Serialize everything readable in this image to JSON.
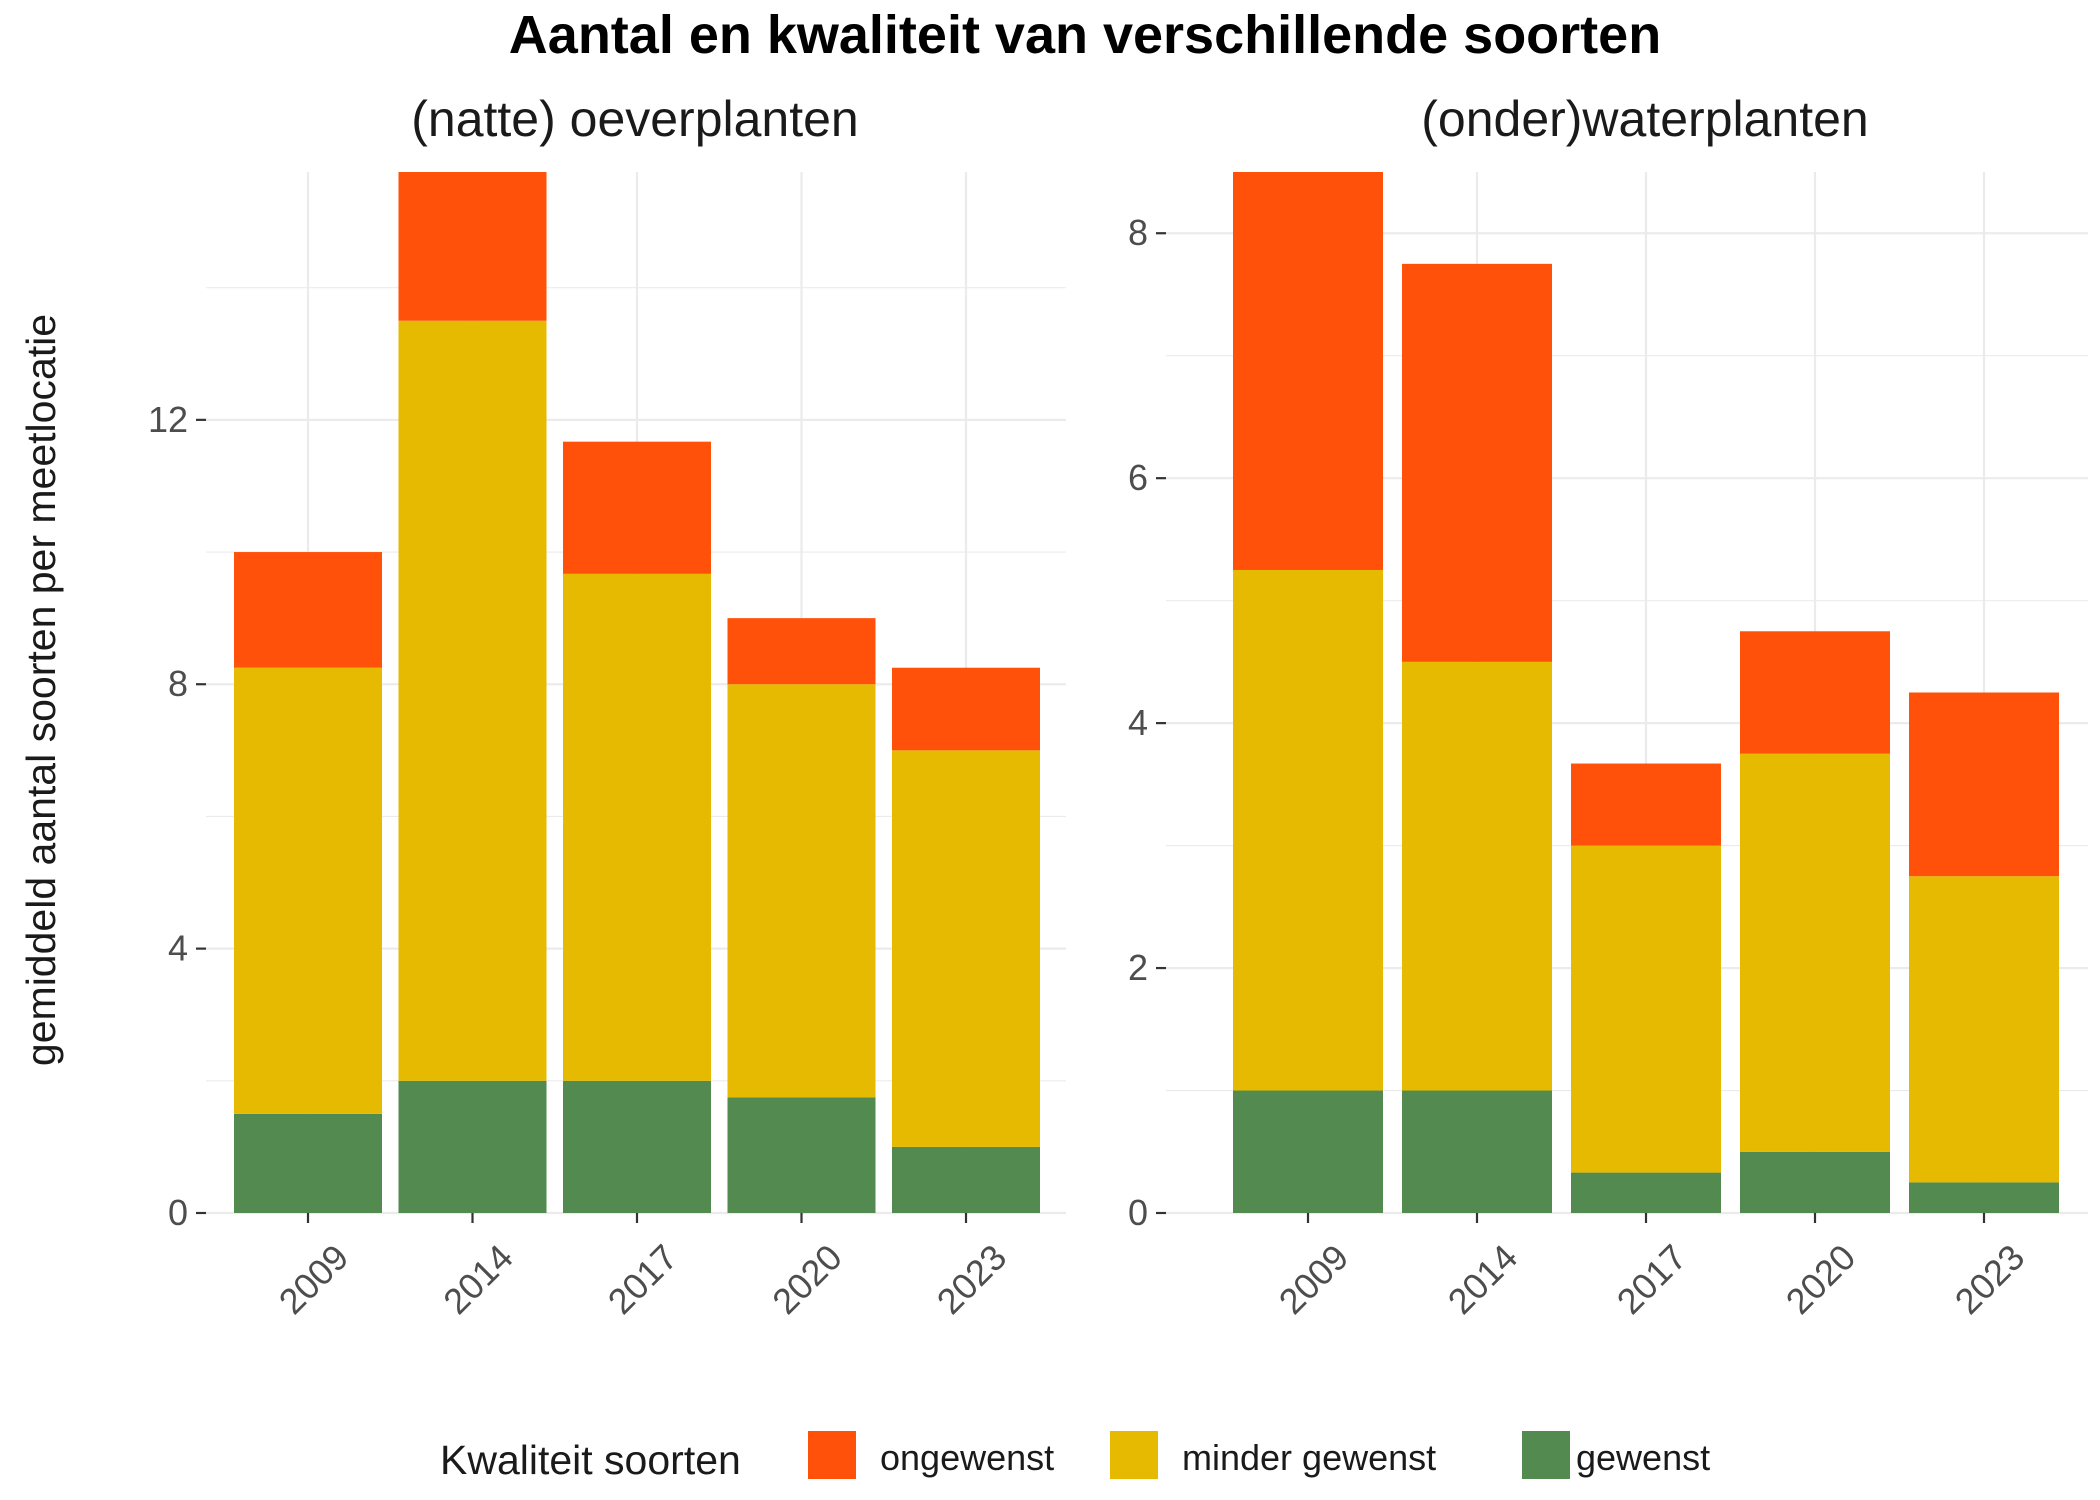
{
  "chart_data": {
    "type": "bar",
    "title": "Aantal en kwaliteit van verschillende soorten",
    "ylabel": "gemiddeld aantal soorten per meetlocatie",
    "categories": [
      "2009",
      "2014",
      "2017",
      "2020",
      "2023"
    ],
    "legend": {
      "title": "Kwaliteit soorten",
      "placement": "bottom",
      "entries": [
        {
          "name": "ongewenst",
          "color": "#FF510A"
        },
        {
          "name": "minder gewenst",
          "color": "#E5BA00"
        },
        {
          "name": "gewenst",
          "color": "#528A4F"
        }
      ]
    },
    "panels": [
      {
        "subtitle": "(natte) oeverplanten",
        "ylim": [
          0,
          15.75
        ],
        "yticks": [
          "0",
          "4",
          "8",
          "12"
        ],
        "series": [
          {
            "name": "gewenst",
            "values": [
              1.5,
              2.0,
              2.0,
              1.75,
              1.0
            ]
          },
          {
            "name": "minder gewenst",
            "values": [
              6.75,
              11.5,
              7.67,
              6.25,
              6.0
            ]
          },
          {
            "name": "ongewenst",
            "values": [
              1.75,
              2.25,
              2.0,
              1.0,
              1.25
            ]
          }
        ]
      },
      {
        "subtitle": "(onder)waterplanten",
        "ylim": [
          0,
          8.5
        ],
        "yticks": [
          "0",
          "2",
          "4",
          "6",
          "8"
        ],
        "series": [
          {
            "name": "gewenst",
            "values": [
              1.0,
              1.0,
              0.33,
              0.5,
              0.25
            ]
          },
          {
            "name": "minder gewenst",
            "values": [
              4.25,
              3.5,
              2.67,
              3.25,
              2.5
            ]
          },
          {
            "name": "ongewenst",
            "values": [
              3.25,
              3.25,
              0.67,
              1.0,
              1.5
            ]
          }
        ]
      }
    ],
    "grid": true
  }
}
